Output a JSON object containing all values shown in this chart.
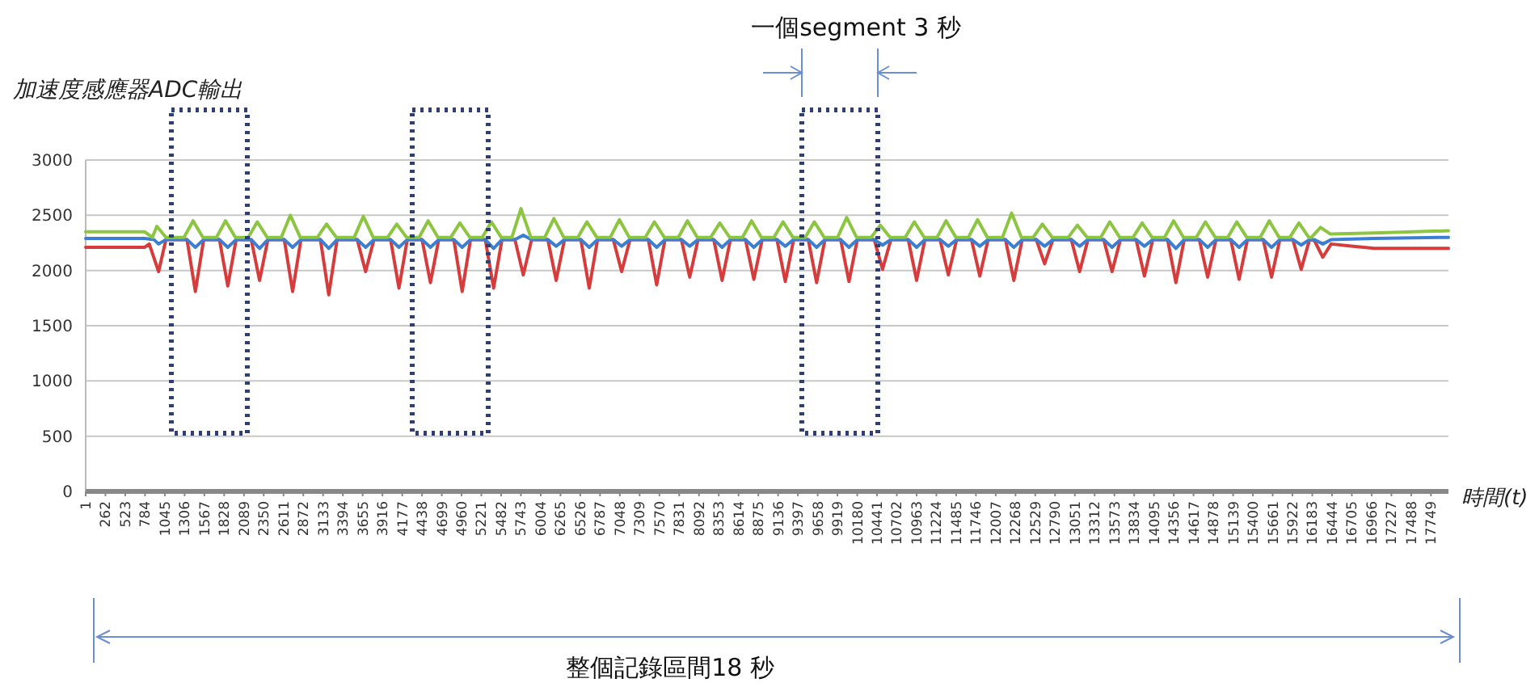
{
  "chart_data": {
    "type": "line",
    "ylabel": "加速度感應器ADC輸出",
    "xlabel": "時間(t)",
    "annotations": [
      "一個segment 3 秒",
      "整個記錄區間18 秒"
    ],
    "xlim": [
      1,
      17980
    ],
    "xticks": [
      1,
      262,
      523,
      784,
      1045,
      1306,
      1567,
      1828,
      2089,
      2350,
      2611,
      2872,
      3133,
      3394,
      3655,
      3916,
      4177,
      4438,
      4699,
      4960,
      5221,
      5482,
      5743,
      6004,
      6265,
      6526,
      6787,
      7048,
      7309,
      7570,
      7831,
      8092,
      8353,
      8614,
      8875,
      9136,
      9397,
      9658,
      9919,
      10180,
      10441,
      10702,
      10963,
      11224,
      11485,
      11746,
      12007,
      12268,
      12529,
      12790,
      13051,
      13312,
      13573,
      13834,
      14095,
      14356,
      14617,
      14878,
      15139,
      15400,
      15661,
      15922,
      16183,
      16444,
      16705,
      16966,
      17227,
      17488,
      17749
    ],
    "ylim": [
      0,
      3000
    ],
    "yticks": [
      0,
      500,
      1000,
      1500,
      2000,
      2500,
      3000
    ],
    "grid": "y",
    "marker": "none",
    "line_style": "solid",
    "series": [
      {
        "color": "#d63c3c",
        "x": [
          1,
          780,
          840,
          963,
          1060,
          1338,
          1448,
          1558,
          1766,
          1876,
          1986,
          2185,
          2295,
          2405,
          2621,
          2731,
          2841,
          3098,
          3208,
          3318,
          3584,
          3694,
          3804,
          4024,
          4134,
          4244,
          4439,
          4549,
          4659,
          4858,
          4968,
          5078,
          5273,
          5383,
          5493,
          5664,
          5774,
          5884,
          6098,
          6208,
          6318,
          6534,
          6644,
          6754,
          6962,
          7072,
          7182,
          7424,
          7534,
          7644,
          7860,
          7970,
          8080,
          8287,
          8397,
          8507,
          8706,
          8816,
          8926,
          9121,
          9231,
          9341,
          9534,
          9644,
          9754,
          9961,
          10071,
          10181,
          10404,
          10514,
          10624,
          10853,
          10963,
          11073,
          11272,
          11382,
          11492,
          11687,
          11797,
          11907,
          12136,
          12246,
          12356,
          12542,
          12652,
          12762,
          13004,
          13114,
          13224,
          13432,
          13542,
          13652,
          13859,
          13969,
          14079,
          14274,
          14384,
          14494,
          14693,
          14803,
          14913,
          15108,
          15218,
          15328,
          15536,
          15646,
          15756,
          15927,
          16037,
          16147,
          16212,
          16322,
          16432,
          16700,
          17000,
          17980
        ],
        "values": [
          2210,
          2210,
          2240,
          1990,
          2280,
          2280,
          1810,
          2280,
          2280,
          1860,
          2280,
          2280,
          1910,
          2280,
          2280,
          1810,
          2280,
          2280,
          1780,
          2280,
          2280,
          1990,
          2280,
          2280,
          1840,
          2280,
          2280,
          1890,
          2280,
          2280,
          1810,
          2280,
          2280,
          1840,
          2280,
          2280,
          1960,
          2280,
          2280,
          1910,
          2280,
          2280,
          1840,
          2280,
          2280,
          1990,
          2280,
          2280,
          1870,
          2280,
          2280,
          1940,
          2280,
          2280,
          1910,
          2280,
          2280,
          1920,
          2280,
          2280,
          1900,
          2280,
          2280,
          1890,
          2280,
          2280,
          1900,
          2280,
          2280,
          2010,
          2280,
          2280,
          1910,
          2280,
          2280,
          1960,
          2280,
          2280,
          1950,
          2280,
          2280,
          1910,
          2280,
          2280,
          2060,
          2280,
          2280,
          1990,
          2280,
          2280,
          1990,
          2280,
          2280,
          1950,
          2280,
          2280,
          1890,
          2280,
          2280,
          1940,
          2280,
          2280,
          1920,
          2280,
          2280,
          1940,
          2280,
          2280,
          2010,
          2280,
          2270,
          2120,
          2240,
          2220,
          2200,
          2200
        ]
      },
      {
        "color": "#3b7fd4",
        "x": [
          1,
          780,
          900,
          963,
          1060,
          1338,
          1448,
          1558,
          1766,
          1876,
          1986,
          2185,
          2295,
          2405,
          2621,
          2731,
          2841,
          3098,
          3208,
          3318,
          3584,
          3694,
          3804,
          4024,
          4134,
          4244,
          4439,
          4549,
          4659,
          4858,
          4968,
          5078,
          5273,
          5383,
          5493,
          5664,
          5774,
          5884,
          6098,
          6208,
          6318,
          6534,
          6644,
          6754,
          6962,
          7072,
          7182,
          7424,
          7534,
          7644,
          7860,
          7970,
          8080,
          8287,
          8397,
          8507,
          8706,
          8816,
          8926,
          9121,
          9231,
          9341,
          9534,
          9644,
          9754,
          9961,
          10071,
          10181,
          10404,
          10514,
          10624,
          10853,
          10963,
          11073,
          11272,
          11382,
          11492,
          11687,
          11797,
          11907,
          12136,
          12246,
          12356,
          12542,
          12652,
          12762,
          13004,
          13114,
          13224,
          13432,
          13542,
          13652,
          13859,
          13969,
          14079,
          14274,
          14384,
          14494,
          14693,
          14803,
          14913,
          15108,
          15218,
          15328,
          15536,
          15646,
          15756,
          15927,
          16037,
          16147,
          16212,
          16322,
          16432,
          17000,
          17980
        ],
        "values": [
          2290,
          2290,
          2280,
          2240,
          2280,
          2280,
          2210,
          2280,
          2280,
          2210,
          2280,
          2280,
          2200,
          2280,
          2280,
          2210,
          2280,
          2280,
          2200,
          2280,
          2280,
          2210,
          2280,
          2280,
          2210,
          2280,
          2280,
          2210,
          2280,
          2280,
          2210,
          2280,
          2280,
          2200,
          2280,
          2280,
          2320,
          2280,
          2280,
          2220,
          2280,
          2280,
          2210,
          2280,
          2280,
          2220,
          2280,
          2280,
          2210,
          2280,
          2280,
          2220,
          2280,
          2280,
          2210,
          2280,
          2280,
          2210,
          2280,
          2280,
          2220,
          2280,
          2280,
          2210,
          2280,
          2280,
          2210,
          2280,
          2280,
          2230,
          2280,
          2280,
          2210,
          2280,
          2280,
          2220,
          2280,
          2280,
          2220,
          2280,
          2280,
          2210,
          2280,
          2280,
          2220,
          2280,
          2280,
          2220,
          2280,
          2280,
          2210,
          2280,
          2280,
          2220,
          2280,
          2280,
          2200,
          2280,
          2280,
          2210,
          2280,
          2280,
          2210,
          2280,
          2280,
          2210,
          2280,
          2280,
          2230,
          2280,
          2280,
          2240,
          2280,
          2290,
          2300
        ]
      },
      {
        "color": "#8cc540",
        "x": [
          1,
          780,
          880,
          940,
          1060,
          1298,
          1418,
          1548,
          1726,
          1846,
          1976,
          2145,
          2265,
          2395,
          2581,
          2701,
          2831,
          3058,
          3178,
          3308,
          3544,
          3664,
          3794,
          3984,
          4104,
          4234,
          4399,
          4519,
          4649,
          4818,
          4938,
          5068,
          5233,
          5353,
          5483,
          5624,
          5744,
          5874,
          6058,
          6178,
          6308,
          6494,
          6614,
          6744,
          6922,
          7042,
          7172,
          7384,
          7504,
          7634,
          7820,
          7940,
          8070,
          8247,
          8367,
          8497,
          8666,
          8786,
          8916,
          9081,
          9201,
          9331,
          9494,
          9614,
          9744,
          9921,
          10041,
          10171,
          10364,
          10484,
          10614,
          10813,
          10933,
          11063,
          11232,
          11352,
          11482,
          11647,
          11767,
          11897,
          12096,
          12216,
          12346,
          12502,
          12622,
          12752,
          12964,
          13084,
          13214,
          13392,
          13512,
          13642,
          13819,
          13939,
          14069,
          14234,
          14354,
          14484,
          14653,
          14773,
          14903,
          15068,
          15188,
          15318,
          15496,
          15616,
          15746,
          15887,
          16007,
          16137,
          16172,
          16292,
          16422,
          17000,
          17980
        ],
        "values": [
          2350,
          2350,
          2300,
          2400,
          2300,
          2300,
          2450,
          2300,
          2300,
          2450,
          2300,
          2300,
          2440,
          2300,
          2300,
          2500,
          2300,
          2300,
          2420,
          2300,
          2300,
          2490,
          2300,
          2300,
          2420,
          2300,
          2300,
          2450,
          2300,
          2300,
          2430,
          2300,
          2300,
          2440,
          2300,
          2300,
          2560,
          2300,
          2300,
          2470,
          2300,
          2300,
          2440,
          2300,
          2300,
          2460,
          2300,
          2300,
          2440,
          2300,
          2300,
          2450,
          2300,
          2300,
          2430,
          2300,
          2300,
          2450,
          2300,
          2300,
          2440,
          2300,
          2300,
          2440,
          2300,
          2300,
          2480,
          2300,
          2300,
          2410,
          2300,
          2300,
          2440,
          2300,
          2300,
          2450,
          2300,
          2300,
          2460,
          2300,
          2300,
          2520,
          2300,
          2300,
          2420,
          2300,
          2300,
          2410,
          2300,
          2300,
          2440,
          2300,
          2300,
          2430,
          2300,
          2300,
          2450,
          2300,
          2300,
          2440,
          2300,
          2300,
          2440,
          2300,
          2300,
          2450,
          2300,
          2300,
          2430,
          2300,
          2300,
          2390,
          2330,
          2340,
          2360
        ]
      }
    ]
  }
}
